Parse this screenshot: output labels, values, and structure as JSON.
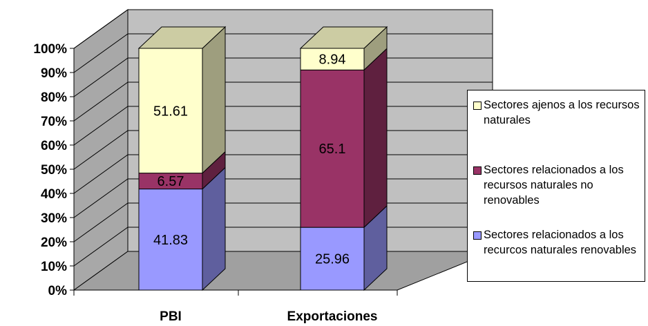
{
  "chart_data": {
    "type": "bar",
    "stacked": "percent",
    "three_d": true,
    "categories": [
      "PBI",
      "Exportaciones"
    ],
    "series": [
      {
        "name": "Sectores relacionados a los recurcos naturales renovables",
        "values": [
          41.83,
          25.96
        ],
        "color": "#9999ff",
        "label_format": "41.83|25.96"
      },
      {
        "name": "Sectores relacionados a los recursos naturales no renovables",
        "values": [
          6.57,
          65.1
        ],
        "color": "#993366"
      },
      {
        "name": "Sectores ajenos a los recursos naturales",
        "values": [
          51.61,
          8.94
        ],
        "color": "#ffffcc"
      }
    ],
    "data_labels": [
      [
        "41.83",
        "25.96"
      ],
      [
        "6.57",
        "65.1"
      ],
      [
        "51.61",
        "8.94"
      ]
    ],
    "y_ticks": [
      "0%",
      "10%",
      "20%",
      "30%",
      "40%",
      "50%",
      "60%",
      "70%",
      "80%",
      "90%",
      "100%"
    ],
    "ylim": [
      0,
      100
    ],
    "grid": true,
    "legend_position": "right",
    "walls_color": "#c0c0c0"
  },
  "legend": {
    "items": [
      {
        "label": "Sectores ajenos a los recursos naturales",
        "color": "#ffffcc"
      },
      {
        "label": "Sectores relacionados a los recursos naturales no renovables",
        "color": "#993366"
      },
      {
        "label": "Sectores relacionados a los recurcos naturales renovables",
        "color": "#9999ff"
      }
    ]
  }
}
